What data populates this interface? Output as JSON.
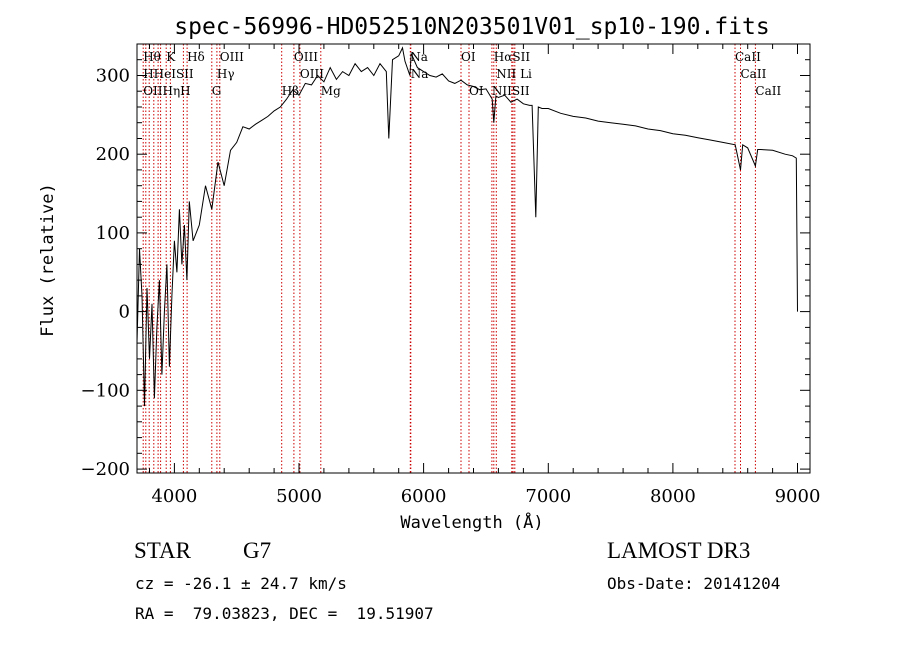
{
  "chart_data": {
    "type": "line",
    "title": "spec-56996-HD052510N203501V01_sp10-190.fits",
    "xlabel": "Wavelength (Å)",
    "ylabel": "Flux (relative)",
    "xlim": [
      3700,
      9100
    ],
    "ylim": [
      -205,
      340
    ],
    "x_ticks": [
      4000,
      5000,
      6000,
      7000,
      8000,
      9000
    ],
    "y_ticks": [
      -200,
      -100,
      0,
      100,
      200,
      300
    ],
    "grid": false,
    "series": [
      {
        "name": "flux",
        "x": [
          3700,
          3720,
          3740,
          3760,
          3780,
          3800,
          3820,
          3840,
          3860,
          3880,
          3900,
          3920,
          3940,
          3960,
          3980,
          4000,
          4020,
          4040,
          4060,
          4080,
          4100,
          4120,
          4150,
          4200,
          4250,
          4300,
          4350,
          4400,
          4450,
          4500,
          4550,
          4600,
          4650,
          4700,
          4750,
          4800,
          4850,
          4900,
          4950,
          5000,
          5050,
          5100,
          5150,
          5200,
          5250,
          5300,
          5350,
          5400,
          5450,
          5500,
          5550,
          5600,
          5650,
          5700,
          5720,
          5750,
          5800,
          5830,
          5850,
          5890,
          5900,
          5950,
          6000,
          6050,
          6100,
          6150,
          6200,
          6250,
          6300,
          6350,
          6400,
          6450,
          6500,
          6550,
          6563,
          6580,
          6600,
          6650,
          6700,
          6750,
          6800,
          6850,
          6870,
          6900,
          6920,
          6950,
          7000,
          7100,
          7200,
          7300,
          7400,
          7500,
          7600,
          7700,
          7800,
          7900,
          8000,
          8100,
          8200,
          8300,
          8400,
          8500,
          8542,
          8560,
          8600,
          8662,
          8680,
          8700,
          8800,
          8900,
          8960,
          8990,
          9000
        ],
        "y": [
          -40,
          80,
          20,
          -120,
          30,
          -60,
          10,
          -110,
          -20,
          40,
          -80,
          0,
          60,
          -70,
          20,
          90,
          50,
          130,
          60,
          110,
          40,
          140,
          90,
          110,
          160,
          130,
          190,
          160,
          205,
          215,
          235,
          232,
          238,
          243,
          248,
          255,
          260,
          270,
          282,
          275,
          290,
          288,
          300,
          292,
          310,
          295,
          305,
          300,
          315,
          305,
          310,
          300,
          315,
          305,
          220,
          320,
          325,
          335,
          318,
          300,
          328,
          310,
          305,
          300,
          298,
          302,
          293,
          290,
          294,
          288,
          286,
          282,
          283,
          270,
          240,
          274,
          272,
          275,
          266,
          270,
          264,
          262,
          262,
          120,
          260,
          258,
          258,
          252,
          248,
          246,
          242,
          240,
          238,
          236,
          232,
          230,
          226,
          224,
          221,
          218,
          215,
          212,
          180,
          212,
          208,
          185,
          206,
          206,
          205,
          200,
          198,
          195,
          0
        ]
      }
    ],
    "line_markers": [
      {
        "wavelength": 3750,
        "label": "Hθ"
      },
      {
        "wavelength": 3771,
        "label": "Hη"
      },
      {
        "wavelength": 3798,
        "label": "OII"
      },
      {
        "wavelength": 3835,
        "label": "Hζ"
      },
      {
        "wavelength": 3869,
        "label": "HeI"
      },
      {
        "wavelength": 3889,
        "label": "Hε"
      },
      {
        "wavelength": 3934,
        "label": "K"
      },
      {
        "wavelength": 3968,
        "label": "H"
      },
      {
        "wavelength": 4072,
        "label": "SII"
      },
      {
        "wavelength": 4102,
        "label": "Hδ"
      },
      {
        "wavelength": 4300,
        "label": "G"
      },
      {
        "wavelength": 4341,
        "label": "Hγ"
      },
      {
        "wavelength": 4364,
        "label": "OIII"
      },
      {
        "wavelength": 4861,
        "label": "Hβ"
      },
      {
        "wavelength": 4959,
        "label": "OIII"
      },
      {
        "wavelength": 5007,
        "label": "OIII"
      },
      {
        "wavelength": 5175,
        "label": "Mg"
      },
      {
        "wavelength": 5893,
        "label": "Na"
      },
      {
        "wavelength": 5897,
        "label": "Na"
      },
      {
        "wavelength": 6300,
        "label": "OI"
      },
      {
        "wavelength": 6364,
        "label": "OI"
      },
      {
        "wavelength": 6548,
        "label": "NII"
      },
      {
        "wavelength": 6563,
        "label": "Hα"
      },
      {
        "wavelength": 6583,
        "label": "NII"
      },
      {
        "wavelength": 6707,
        "label": "Li"
      },
      {
        "wavelength": 6717,
        "label": "SII"
      },
      {
        "wavelength": 6731,
        "label": "SII"
      },
      {
        "wavelength": 8498,
        "label": "CaII"
      },
      {
        "wavelength": 8542,
        "label": "CaII"
      },
      {
        "wavelength": 8662,
        "label": "CaII"
      }
    ],
    "marker_labels": [
      {
        "text": "Hθ",
        "wavelength": 3750,
        "row": 0
      },
      {
        "text": "K",
        "wavelength": 3934,
        "row": 0
      },
      {
        "text": "Hδ",
        "wavelength": 4102,
        "row": 0
      },
      {
        "text": "OIII",
        "wavelength": 4364,
        "row": 0
      },
      {
        "text": "OIII",
        "wavelength": 4959,
        "row": 0
      },
      {
        "text": "Na",
        "wavelength": 5893,
        "row": 0
      },
      {
        "text": "OI",
        "wavelength": 6300,
        "row": 0
      },
      {
        "text": "HαSII",
        "wavelength": 6563,
        "row": 0
      },
      {
        "text": "CaII",
        "wavelength": 8498,
        "row": 0
      },
      {
        "text": "HHeISII",
        "wavelength": 3750,
        "row": 1
      },
      {
        "text": "Hγ",
        "wavelength": 4341,
        "row": 1
      },
      {
        "text": "OIII",
        "wavelength": 5007,
        "row": 1
      },
      {
        "text": "Na",
        "wavelength": 5897,
        "row": 1
      },
      {
        "text": "NII Li",
        "wavelength": 6583,
        "row": 1
      },
      {
        "text": "CaII",
        "wavelength": 8542,
        "row": 1
      },
      {
        "text": "OIIHηH",
        "wavelength": 3750,
        "row": 2
      },
      {
        "text": "G",
        "wavelength": 4300,
        "row": 2
      },
      {
        "text": "Hβ",
        "wavelength": 4861,
        "row": 2
      },
      {
        "text": "Mg",
        "wavelength": 5175,
        "row": 2
      },
      {
        "text": "OI",
        "wavelength": 6364,
        "row": 2
      },
      {
        "text": "NIISII",
        "wavelength": 6548,
        "row": 2
      },
      {
        "text": "CaII",
        "wavelength": 8662,
        "row": 2
      }
    ]
  },
  "info": {
    "object_class": "STAR",
    "subclass": "G7",
    "survey": "LAMOST DR3",
    "cz": "cz = -26.1 ± 24.7 km/s",
    "obs_date": "Obs-Date: 20141204",
    "coords": "RA =  79.03823, DEC =  19.51907"
  },
  "colors": {
    "line": "#000000",
    "marker": "#cc0000",
    "background": "#ffffff"
  }
}
